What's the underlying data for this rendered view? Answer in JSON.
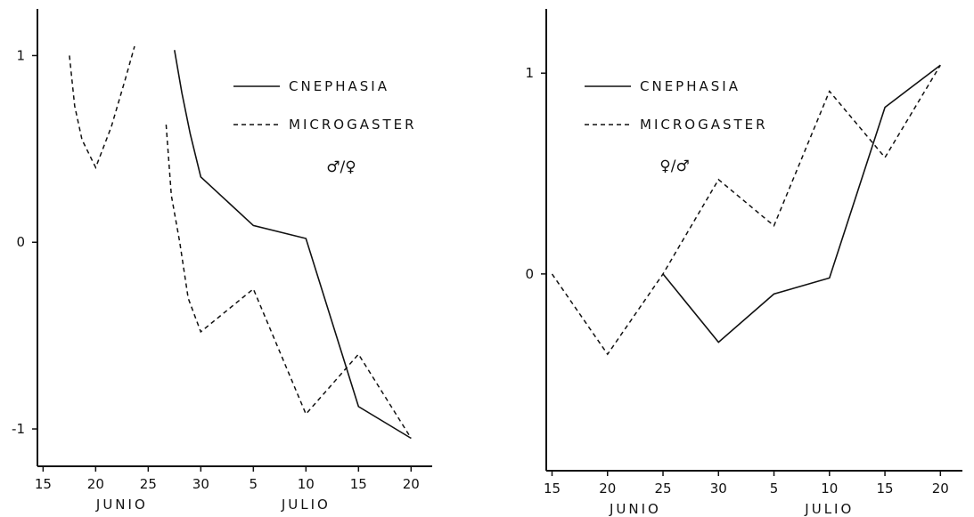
{
  "chart_data": [
    {
      "type": "line",
      "ratio_label": "♂/♀",
      "x_tick_labels": [
        "15",
        "20",
        "25",
        "30",
        "5",
        "10",
        "15",
        "20"
      ],
      "x_ticks": [
        0,
        5,
        10,
        15,
        20,
        25,
        30,
        35
      ],
      "x_groups": [
        {
          "label": "JUNIO",
          "center": 7.5
        },
        {
          "label": "JULIO",
          "center": 25
        }
      ],
      "y_tick_labels": [
        "1",
        "0",
        "-1"
      ],
      "y_ticks": [
        1,
        0,
        -1
      ],
      "xlim": [
        -0.2,
        36.5
      ],
      "ylim": [
        -1.2,
        1.25
      ],
      "series": [
        {
          "name": "CNEPHASIA",
          "style": "solid",
          "segments": [
            [
              [
                12.5,
                1.03
              ],
              [
                13.2,
                0.8
              ],
              [
                14,
                0.58
              ],
              [
                15,
                0.35
              ],
              [
                20,
                0.09
              ],
              [
                25,
                0.02
              ],
              [
                30,
                -0.88
              ],
              [
                35,
                -1.05
              ]
            ]
          ]
        },
        {
          "name": "MICROGASTER",
          "style": "dashed",
          "segments": [
            [
              [
                2.5,
                1.0
              ],
              [
                3,
                0.73
              ],
              [
                3.7,
                0.55
              ],
              [
                5,
                0.4
              ],
              [
                6.5,
                0.62
              ],
              [
                7.8,
                0.87
              ],
              [
                8.7,
                1.05
              ]
            ],
            [
              [
                11.7,
                0.63
              ],
              [
                12.2,
                0.25
              ],
              [
                13,
                0.0
              ],
              [
                13.8,
                -0.3
              ],
              [
                15,
                -0.48
              ],
              [
                20,
                -0.25
              ],
              [
                25,
                -0.92
              ],
              [
                30,
                -0.6
              ],
              [
                35,
                -1.05
              ]
            ]
          ]
        }
      ]
    },
    {
      "type": "line",
      "ratio_label": "♀/♂",
      "x_tick_labels": [
        "15",
        "20",
        "25",
        "30",
        "5",
        "10",
        "15",
        "20"
      ],
      "x_ticks": [
        0,
        5,
        10,
        15,
        20,
        25,
        30,
        35
      ],
      "x_groups": [
        {
          "label": "JUNIO",
          "center": 7.5
        },
        {
          "label": "JULIO",
          "center": 25
        }
      ],
      "y_tick_labels": [
        "1",
        "0"
      ],
      "y_ticks": [
        1,
        0
      ],
      "xlim": [
        -0.2,
        36.5
      ],
      "ylim": [
        -0.98,
        1.32
      ],
      "series": [
        {
          "name": "CNEPHASIA",
          "style": "solid",
          "segments": [
            [
              [
                10,
                0.0
              ],
              [
                15,
                -0.34
              ],
              [
                20,
                -0.1
              ],
              [
                25,
                -0.02
              ],
              [
                30,
                0.83
              ],
              [
                35,
                1.04
              ]
            ]
          ]
        },
        {
          "name": "MICROGASTER",
          "style": "dashed",
          "segments": [
            [
              [
                0,
                0.0
              ],
              [
                5,
                -0.4
              ],
              [
                10,
                0.0
              ],
              [
                15,
                0.47
              ],
              [
                20,
                0.24
              ],
              [
                25,
                0.91
              ],
              [
                30,
                0.58
              ],
              [
                35,
                1.04
              ]
            ]
          ]
        }
      ]
    }
  ]
}
